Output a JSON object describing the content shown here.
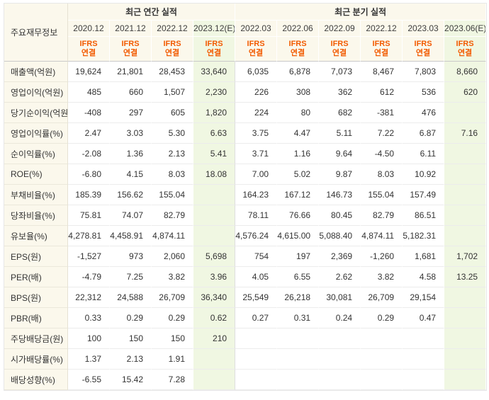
{
  "colors": {
    "header_background": "#fbf8ec",
    "estimate_background": "#f0f7e2",
    "accent_orange": "#f25a00",
    "negative_red": "#f23030"
  },
  "chart_data": {
    "type": "table",
    "corner_label": "주요재무정보",
    "ifrs": {
      "line1": "IFRS",
      "line2": "연결"
    },
    "groups": [
      {
        "label": "최근 연간 실적",
        "cols": 4
      },
      {
        "label": "최근 분기 실적",
        "cols": 6
      }
    ],
    "columns": [
      {
        "label": "2020.12",
        "estimate": false
      },
      {
        "label": "2021.12",
        "estimate": false
      },
      {
        "label": "2022.12",
        "estimate": false
      },
      {
        "label": "2023.12(E)",
        "estimate": true
      },
      {
        "label": "2022.03",
        "estimate": false
      },
      {
        "label": "2022.06",
        "estimate": false
      },
      {
        "label": "2022.09",
        "estimate": false
      },
      {
        "label": "2022.12",
        "estimate": false
      },
      {
        "label": "2023.03",
        "estimate": false
      },
      {
        "label": "2023.06(E)",
        "estimate": true
      }
    ],
    "rows": [
      {
        "label": "매출액(억원)",
        "values": [
          "19,624",
          "21,801",
          "28,453",
          "33,640",
          "6,035",
          "6,878",
          "7,073",
          "8,467",
          "7,803",
          "8,660"
        ]
      },
      {
        "label": "영업이익(억원)",
        "values": [
          "485",
          "660",
          "1,507",
          "2,230",
          "226",
          "308",
          "362",
          "612",
          "536",
          "620"
        ]
      },
      {
        "label": "당기순이익(억원)",
        "values": [
          "-408",
          "297",
          "605",
          "1,820",
          "224",
          "80",
          "682",
          "-381",
          "476",
          ""
        ]
      },
      {
        "label": "영업이익률(%)",
        "values": [
          "2.47",
          "3.03",
          "5.30",
          "6.63",
          "3.75",
          "4.47",
          "5.11",
          "7.22",
          "6.87",
          "7.16"
        ]
      },
      {
        "label": "순이익률(%)",
        "values": [
          "-2.08",
          "1.36",
          "2.13",
          "5.41",
          "3.71",
          "1.16",
          "9.64",
          "-4.50",
          "6.11",
          ""
        ]
      },
      {
        "label": "ROE(%)",
        "values": [
          "-6.80",
          "4.15",
          "8.03",
          "18.08",
          "7.00",
          "5.02",
          "9.87",
          "8.03",
          "10.92",
          ""
        ]
      },
      {
        "label": "부채비율(%)",
        "values": [
          "185.39",
          "156.62",
          "155.04",
          "",
          "164.23",
          "167.12",
          "146.73",
          "155.04",
          "157.49",
          ""
        ]
      },
      {
        "label": "당좌비율(%)",
        "values": [
          "75.81",
          "74.07",
          "82.79",
          "",
          "78.11",
          "76.66",
          "80.45",
          "82.79",
          "86.51",
          ""
        ]
      },
      {
        "label": "유보율(%)",
        "values": [
          "4,278.81",
          "4,458.91",
          "4,874.11",
          "",
          "4,576.24",
          "4,615.00",
          "5,088.40",
          "4,874.11",
          "5,182.31",
          ""
        ]
      },
      {
        "label": "EPS(원)",
        "values": [
          "-1,527",
          "973",
          "2,060",
          "5,698",
          "754",
          "197",
          "2,369",
          "-1,260",
          "1,681",
          "1,702"
        ]
      },
      {
        "label": "PER(배)",
        "values": [
          "-4.79",
          "7.25",
          "3.82",
          "3.96",
          "4.05",
          "6.55",
          "2.62",
          "3.82",
          "4.58",
          "13.25"
        ]
      },
      {
        "label": "BPS(원)",
        "values": [
          "22,312",
          "24,588",
          "26,709",
          "36,340",
          "25,549",
          "26,218",
          "30,081",
          "26,709",
          "29,154",
          ""
        ]
      },
      {
        "label": "PBR(배)",
        "values": [
          "0.33",
          "0.29",
          "0.29",
          "0.62",
          "0.27",
          "0.31",
          "0.24",
          "0.29",
          "0.47",
          ""
        ]
      },
      {
        "label": "주당배당금(원)",
        "values": [
          "100",
          "150",
          "150",
          "210",
          "",
          "",
          "",
          "",
          "",
          ""
        ]
      },
      {
        "label": "시가배당률(%)",
        "values": [
          "1.37",
          "2.13",
          "1.91",
          "",
          "",
          "",
          "",
          "",
          "",
          ""
        ]
      },
      {
        "label": "배당성향(%)",
        "values": [
          "-6.55",
          "15.42",
          "7.28",
          "",
          "",
          "",
          "",
          "",
          "",
          ""
        ]
      }
    ]
  }
}
